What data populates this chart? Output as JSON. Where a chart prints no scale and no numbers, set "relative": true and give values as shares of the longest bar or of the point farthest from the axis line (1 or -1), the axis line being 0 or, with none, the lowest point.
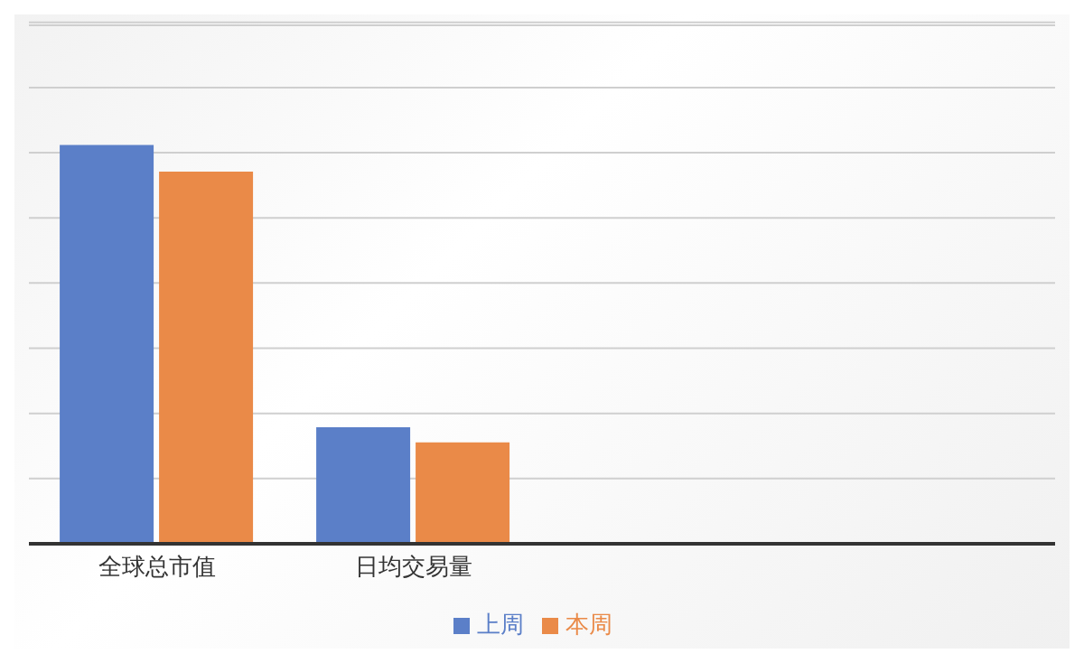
{
  "chart_data": {
    "type": "bar",
    "relative": true,
    "categories": [
      "全球总市值",
      "日均交易量",
      null,
      null
    ],
    "series": [
      {
        "name": "上周",
        "color": "#5b7fc8",
        "values": [
          1,
          0.292,
          null,
          null
        ]
      },
      {
        "name": "本周",
        "color": "#ea8a48",
        "values": [
          0.933,
          0.254,
          null,
          null
        ]
      }
    ],
    "grid": "y",
    "legend": "bottom"
  }
}
